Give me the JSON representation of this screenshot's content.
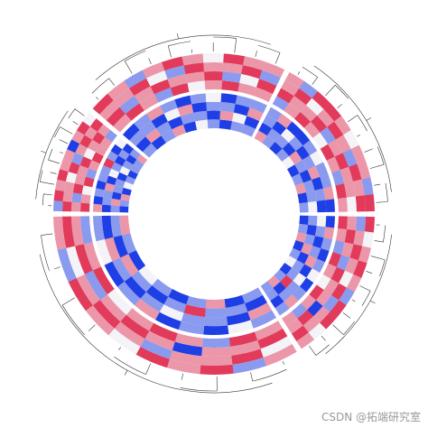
{
  "chart_data": {
    "type": "circular_heatmap",
    "limits": [
      -2,
      2
    ],
    "colors": [
      "#1f3fe6",
      "#f4f4f8",
      "#e23a5a"
    ],
    "rings": [
      [
        [
          [
            2,
            1,
            -1,
            2,
            1,
            0,
            2,
            1,
            -1,
            1
          ],
          [
            1,
            2,
            1,
            -1,
            2,
            1,
            1,
            -2,
            2,
            1
          ],
          [
            -1,
            1,
            2,
            1,
            0,
            2,
            -1,
            1,
            1,
            2
          ],
          [
            2,
            0,
            1,
            2,
            1,
            -1,
            2,
            2,
            0,
            1
          ]
        ],
        [
          [
            1,
            2,
            -1,
            1,
            2,
            1,
            0,
            2,
            1,
            -1
          ],
          [
            2,
            1,
            1,
            -2,
            1,
            2,
            1,
            -1,
            2,
            1
          ],
          [
            0,
            2,
            1,
            1,
            -1,
            1,
            2,
            1,
            0,
            2
          ],
          [
            1,
            -1,
            2,
            1,
            2,
            0,
            1,
            2,
            -1,
            1
          ]
        ],
        [
          [
            2,
            1,
            0,
            2,
            -1,
            1,
            2,
            1,
            1,
            -1
          ],
          [
            1,
            -1,
            2,
            1,
            1,
            2,
            0,
            1,
            2,
            1
          ],
          [
            2,
            1,
            1,
            0,
            2,
            -1,
            1,
            2,
            1,
            2
          ],
          [
            -1,
            2,
            1,
            2,
            1,
            1,
            -2,
            1,
            2,
            0
          ]
        ],
        [
          [
            1,
            2,
            1,
            -1,
            2,
            0,
            1,
            2,
            1,
            1
          ],
          [
            2,
            -1,
            1,
            2,
            1,
            1,
            2,
            -1,
            0,
            2
          ],
          [
            1,
            1,
            2,
            0,
            -1,
            2,
            1,
            1,
            2,
            -1
          ],
          [
            2,
            1,
            -1,
            1,
            2,
            1,
            0,
            2,
            1,
            1
          ]
        ],
        [
          [
            -1,
            1,
            2,
            1,
            0,
            2,
            1,
            -1,
            2,
            1
          ],
          [
            2,
            1,
            1,
            2,
            -1,
            1,
            2,
            1,
            1,
            0
          ],
          [
            1,
            2,
            0,
            1,
            2,
            1,
            -1,
            2,
            1,
            2
          ],
          [
            1,
            -1,
            2,
            2,
            1,
            0,
            1,
            1,
            -1,
            2
          ]
        ]
      ],
      [
        [
          [
            -2,
            -1,
            1,
            -2,
            -1,
            0,
            -2,
            -1,
            1,
            -1
          ],
          [
            -1,
            -2,
            -1,
            1,
            -2,
            -1,
            -1,
            2,
            -2,
            -1
          ],
          [
            0,
            -1,
            -2,
            -1,
            1,
            -2,
            0,
            -1,
            -1,
            -2
          ],
          [
            -2,
            1,
            -1,
            -2,
            -1,
            0,
            -2,
            -1,
            1,
            -1
          ]
        ],
        [
          [
            -1,
            -2,
            1,
            -1,
            -2,
            -1,
            0,
            -2,
            -1,
            1
          ],
          [
            -2,
            -1,
            -1,
            2,
            -1,
            -2,
            -1,
            1,
            -2,
            -1
          ],
          [
            1,
            -2,
            -1,
            -1,
            0,
            -1,
            -2,
            -1,
            1,
            -2
          ],
          [
            -1,
            0,
            -2,
            -1,
            -2,
            1,
            -1,
            -2,
            0,
            -1
          ]
        ],
        [
          [
            -2,
            -1,
            1,
            -2,
            0,
            -1,
            -2,
            -1,
            -1,
            1
          ],
          [
            -1,
            1,
            -2,
            -1,
            -1,
            -2,
            0,
            -1,
            -2,
            -1
          ],
          [
            -2,
            -1,
            -1,
            1,
            -2,
            0,
            -1,
            -2,
            -1,
            -2
          ],
          [
            1,
            -2,
            -1,
            -2,
            -1,
            -1,
            2,
            -1,
            -2,
            0
          ]
        ],
        [
          [
            -1,
            -2,
            -1,
            1,
            -2,
            0,
            -1,
            -2,
            -1,
            -1
          ],
          [
            -2,
            1,
            -1,
            -2,
            -1,
            -1,
            -2,
            1,
            0,
            -2
          ],
          [
            -1,
            -1,
            -2,
            0,
            1,
            -2,
            -1,
            -1,
            -2,
            1
          ],
          [
            -2,
            -1,
            1,
            -1,
            -2,
            -1,
            0,
            -2,
            -1,
            -1
          ]
        ],
        [
          [
            1,
            -1,
            -2,
            -1,
            0,
            -2,
            -1,
            1,
            -2,
            -1
          ],
          [
            -2,
            -1,
            -1,
            -2,
            1,
            -1,
            -2,
            -1,
            -1,
            0
          ],
          [
            -1,
            -2,
            0,
            -1,
            -2,
            -1,
            1,
            -2,
            -1,
            -2
          ],
          [
            -1,
            1,
            -2,
            -2,
            -1,
            0,
            -1,
            -1,
            1,
            -2
          ]
        ]
      ]
    ]
  },
  "watermark": "CSDN @拓端研究室"
}
